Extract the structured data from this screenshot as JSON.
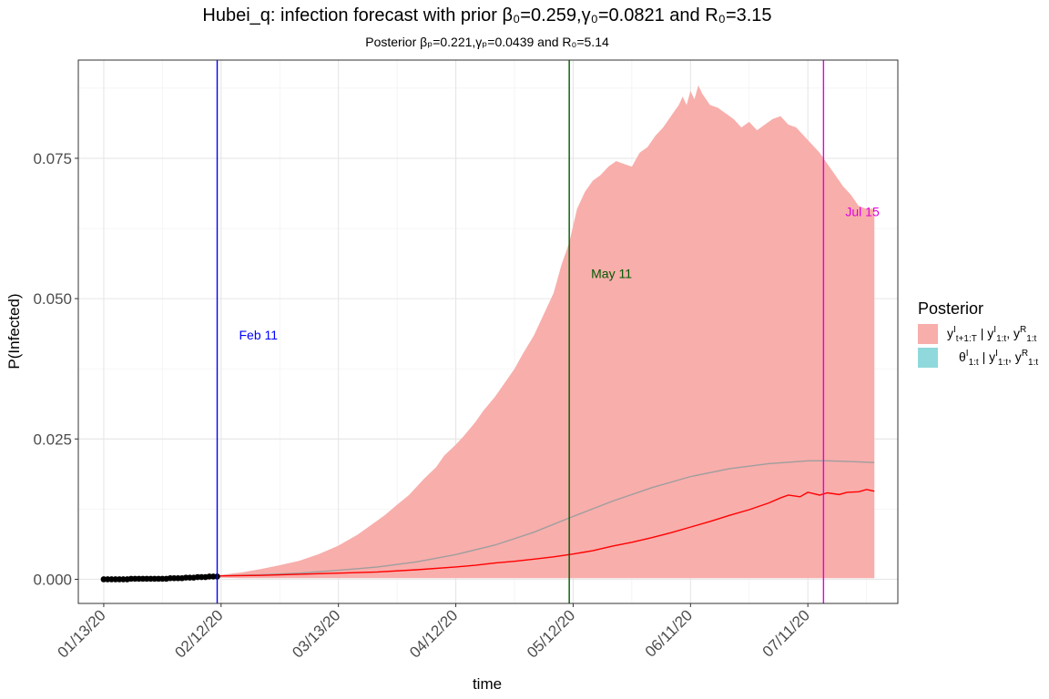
{
  "chart_data": {
    "type": "area",
    "title": "Hubei_q: infection forecast with prior β₀=0.259,γ₀=0.0821 and R₀=3.15",
    "subtitle": "Posterior βₚ=0.221,γₚ=0.0439 and R₀=5.14",
    "xlabel": "time",
    "ylabel": "P(Infected)",
    "ylim": [
      -0.0043,
      0.0925
    ],
    "y_ticks": [
      0.0,
      0.025,
      0.05,
      0.075
    ],
    "y_tick_labels": [
      "0.000",
      "0.025",
      "0.050",
      "0.075"
    ],
    "x_range_days": [
      -6.5,
      203
    ],
    "x_ticks": [
      {
        "day": 0,
        "label": "01/13/20"
      },
      {
        "day": 30,
        "label": "02/12/20"
      },
      {
        "day": 60,
        "label": "03/13/20"
      },
      {
        "day": 90,
        "label": "04/12/20"
      },
      {
        "day": 120,
        "label": "05/12/20"
      },
      {
        "day": 150,
        "label": "06/11/20"
      },
      {
        "day": 180,
        "label": "07/11/20"
      }
    ],
    "grid": true,
    "legend": {
      "title": "Posterior",
      "placement": "right",
      "entries": [
        {
          "label": "y^I_{t+1:T} | y^I_{1:t}, y^R_{1:t}",
          "color": "#f8aeab"
        },
        {
          "label": "θ^I_{1:t} | y^I_{1:t}, y^R_{1:t}",
          "color": "#8fd9dc"
        }
      ]
    },
    "vlines": [
      {
        "day": 29,
        "label": "Feb 11",
        "color": "#0000ff",
        "label_y": 0.0435
      },
      {
        "day": 119,
        "label": "May 11",
        "color": "#005a00",
        "label_y": 0.0545
      },
      {
        "day": 184,
        "label": "Jul 15",
        "color": "#e000e0",
        "label_y": 0.0655
      }
    ],
    "series": [
      {
        "name": "observed",
        "kind": "points",
        "color": "#000000",
        "x": [
          0,
          1,
          2,
          3,
          4,
          5,
          6,
          7,
          8,
          9,
          10,
          11,
          12,
          13,
          14,
          15,
          16,
          17,
          18,
          19,
          20,
          21,
          22,
          23,
          24,
          25,
          26,
          27,
          28,
          29
        ],
        "y": [
          0.0,
          0.0,
          0.0,
          0.0,
          0.0,
          0.0,
          0.0,
          0.0001,
          0.0001,
          0.0001,
          0.0001,
          0.0001,
          0.0001,
          0.0001,
          0.0001,
          0.0001,
          0.0001,
          0.0002,
          0.0002,
          0.0002,
          0.0002,
          0.0003,
          0.0003,
          0.0003,
          0.0004,
          0.0004,
          0.0004,
          0.0005,
          0.0005,
          0.0005
        ]
      },
      {
        "name": "forecast band",
        "kind": "band",
        "color": "#f8aeab",
        "x": [
          29,
          35,
          40,
          45,
          50,
          55,
          60,
          65,
          70,
          72,
          75,
          78,
          80,
          82,
          85,
          87,
          90,
          92,
          95,
          97,
          100,
          102,
          105,
          107,
          110,
          112,
          115,
          117,
          119,
          121,
          123,
          125,
          127,
          129,
          131,
          133,
          135,
          137,
          139,
          141,
          143,
          145,
          147,
          148,
          149,
          150,
          151,
          152,
          153,
          155,
          157,
          159,
          161,
          163,
          165,
          167,
          169,
          171,
          173,
          175,
          177,
          179,
          181,
          183,
          185,
          187,
          189,
          191,
          193,
          195,
          197
        ],
        "lower": [
          0.0003,
          0.0002,
          0.0002,
          0.0002,
          0.0002,
          0.0002,
          0.0002,
          0.0002,
          0.0002,
          0.0002,
          0.0002,
          0.0002,
          0.0002,
          0.0002,
          0.0002,
          0.0002,
          0.0002,
          0.0002,
          0.0002,
          0.0002,
          0.0002,
          0.0002,
          0.0002,
          0.0002,
          0.0002,
          0.0002,
          0.0002,
          0.0002,
          0.0002,
          0.0002,
          0.0002,
          0.0002,
          0.0002,
          0.0002,
          0.0002,
          0.0002,
          0.0002,
          0.0002,
          0.0002,
          0.0002,
          0.0002,
          0.0002,
          0.0002,
          0.0002,
          0.0002,
          0.0002,
          0.0002,
          0.0002,
          0.0002,
          0.0002,
          0.0002,
          0.0002,
          0.0002,
          0.0002,
          0.0002,
          0.0002,
          0.0002,
          0.0002,
          0.0002,
          0.0002,
          0.0002,
          0.0002,
          0.0002,
          0.0002,
          0.0002,
          0.0002,
          0.0002,
          0.0002,
          0.0002,
          0.0002,
          0.0002
        ],
        "upper": [
          0.0007,
          0.0012,
          0.0018,
          0.0025,
          0.0033,
          0.0045,
          0.006,
          0.008,
          0.0105,
          0.0115,
          0.0133,
          0.015,
          0.0165,
          0.018,
          0.02,
          0.022,
          0.024,
          0.0255,
          0.028,
          0.03,
          0.0325,
          0.0345,
          0.0375,
          0.04,
          0.0435,
          0.0465,
          0.051,
          0.056,
          0.06,
          0.066,
          0.069,
          0.071,
          0.072,
          0.0735,
          0.0745,
          0.074,
          0.0735,
          0.076,
          0.077,
          0.079,
          0.0805,
          0.0825,
          0.0845,
          0.086,
          0.0845,
          0.087,
          0.0855,
          0.088,
          0.0865,
          0.0845,
          0.084,
          0.083,
          0.082,
          0.0805,
          0.0815,
          0.08,
          0.081,
          0.082,
          0.0825,
          0.081,
          0.0805,
          0.079,
          0.0775,
          0.076,
          0.074,
          0.072,
          0.07,
          0.0685,
          0.0665,
          0.066,
          0.066
        ]
      },
      {
        "name": "posterior mean",
        "kind": "line",
        "color": "#9e9e9e",
        "x": [
          29,
          40,
          50,
          60,
          70,
          80,
          90,
          100,
          110,
          120,
          130,
          140,
          150,
          160,
          170,
          180,
          185,
          190,
          197
        ],
        "y": [
          0.0006,
          0.0008,
          0.0011,
          0.0016,
          0.0022,
          0.0031,
          0.0044,
          0.0061,
          0.0084,
          0.0112,
          0.0139,
          0.0163,
          0.0183,
          0.0197,
          0.0206,
          0.0211,
          0.0211,
          0.021,
          0.0208
        ]
      },
      {
        "name": "forecast median",
        "kind": "line",
        "color": "#ff0000",
        "x": [
          29,
          40,
          50,
          60,
          70,
          80,
          90,
          95,
          100,
          105,
          110,
          115,
          120,
          125,
          130,
          135,
          140,
          145,
          150,
          155,
          160,
          165,
          170,
          173,
          175,
          178,
          180,
          183,
          185,
          188,
          190,
          193,
          195,
          197
        ],
        "y": [
          0.0006,
          0.0007,
          0.0009,
          0.0011,
          0.0013,
          0.0017,
          0.0022,
          0.0025,
          0.0029,
          0.0032,
          0.0036,
          0.004,
          0.0045,
          0.0051,
          0.0059,
          0.0066,
          0.0074,
          0.0083,
          0.0093,
          0.0103,
          0.0114,
          0.0124,
          0.0136,
          0.0145,
          0.015,
          0.0147,
          0.0155,
          0.015,
          0.0154,
          0.0151,
          0.0155,
          0.0156,
          0.016,
          0.0157
        ]
      }
    ]
  }
}
